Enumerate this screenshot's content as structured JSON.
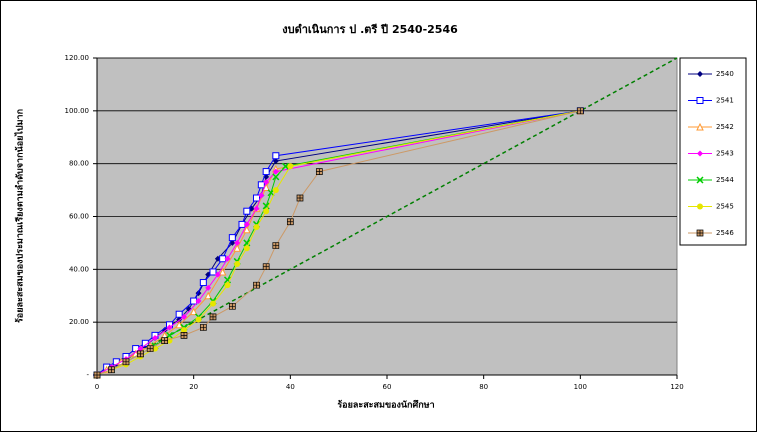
{
  "chart_data": {
    "type": "scatter-line",
    "title": "งบดำเนินการ ป .ตรี ปี 2540-2546",
    "x_label": "ร้อยละสะสมของนักศึกษา",
    "y_label": "ร้อยละสะสมของประมาณเรียงตามลำดับจากน้อยไปมาก",
    "xlim": [
      0,
      120
    ],
    "xticks": [
      0,
      20,
      40,
      60,
      80,
      100,
      120
    ],
    "ylim": [
      0,
      120
    ],
    "yticks": [
      {
        "value": 0,
        "label": "-"
      },
      {
        "value": 20,
        "label": "20.00"
      },
      {
        "value": 40,
        "label": "40.00"
      },
      {
        "value": 60,
        "label": "60.00"
      },
      {
        "value": 80,
        "label": "80.00"
      },
      {
        "value": 100,
        "label": "100.00"
      },
      {
        "value": 120,
        "label": "120.00"
      }
    ],
    "grid": true,
    "legend": "right",
    "diagonal": {
      "color": "#008000",
      "x": [
        0,
        120
      ],
      "values": [
        0,
        120
      ]
    },
    "series": [
      {
        "name": "2540",
        "color": "#000080",
        "marker": "diamond",
        "x": [
          0,
          2,
          4,
          6,
          8,
          10,
          12,
          14,
          17,
          19,
          21,
          23,
          25,
          28,
          30,
          32,
          34,
          35,
          37,
          100
        ],
        "values": [
          0,
          2,
          4,
          6,
          8,
          11,
          14,
          17,
          21,
          25,
          31,
          38,
          44,
          50,
          57,
          63,
          68,
          75,
          81,
          100
        ]
      },
      {
        "name": "2541",
        "color": "#0000ff",
        "marker": "square",
        "x": [
          0,
          2,
          4,
          6,
          8,
          10,
          12,
          15,
          17,
          20,
          22,
          24,
          26,
          28,
          30,
          31,
          33,
          34,
          35,
          37,
          100
        ],
        "values": [
          0,
          3,
          5,
          7,
          10,
          12,
          15,
          19,
          23,
          28,
          35,
          39,
          44,
          52,
          57,
          62,
          67,
          72,
          77,
          83,
          100
        ]
      },
      {
        "name": "2542",
        "color": "#ff9933",
        "marker": "triangle",
        "x": [
          0,
          2,
          5,
          8,
          11,
          14,
          17,
          20,
          23,
          26,
          29,
          31,
          33,
          35,
          37,
          100
        ],
        "values": [
          0,
          2,
          5,
          8,
          11,
          15,
          19,
          24,
          30,
          39,
          48,
          55,
          63,
          71,
          78,
          100
        ]
      },
      {
        "name": "2543",
        "color": "#ff00ff",
        "marker": "diamond",
        "x": [
          0,
          3,
          6,
          9,
          12,
          15,
          18,
          21,
          23,
          25,
          27,
          29,
          31,
          33,
          34,
          35,
          37,
          100
        ],
        "values": [
          0,
          3,
          6,
          10,
          14,
          18,
          22,
          28,
          33,
          38,
          44,
          50,
          57,
          63,
          68,
          73,
          77,
          100
        ]
      },
      {
        "name": "2544",
        "color": "#00cc00",
        "marker": "x",
        "x": [
          0,
          3,
          6,
          9,
          12,
          15,
          18,
          21,
          24,
          27,
          29,
          31,
          33,
          35,
          36,
          37,
          39,
          100
        ],
        "values": [
          0,
          2,
          5,
          8,
          11,
          15,
          18,
          22,
          28,
          36,
          43,
          50,
          57,
          64,
          69,
          75,
          79,
          100
        ]
      },
      {
        "name": "2545",
        "color": "#e6e600",
        "marker": "circle",
        "x": [
          0,
          3,
          6,
          9,
          12,
          15,
          18,
          21,
          24,
          27,
          29,
          31,
          33,
          35,
          37,
          40,
          100
        ],
        "values": [
          0,
          2,
          4,
          7,
          10,
          13,
          17,
          21,
          27,
          34,
          42,
          48,
          56,
          62,
          70,
          79,
          100
        ]
      },
      {
        "name": "2546",
        "color": "#cc9966",
        "marker": "plus",
        "x": [
          0,
          3,
          6,
          9,
          11,
          14,
          18,
          22,
          24,
          28,
          33,
          35,
          37,
          40,
          42,
          46,
          100
        ],
        "values": [
          0,
          2,
          5,
          8,
          10,
          13,
          15,
          18,
          22,
          26,
          34,
          41,
          49,
          58,
          67,
          77,
          100
        ]
      }
    ]
  }
}
